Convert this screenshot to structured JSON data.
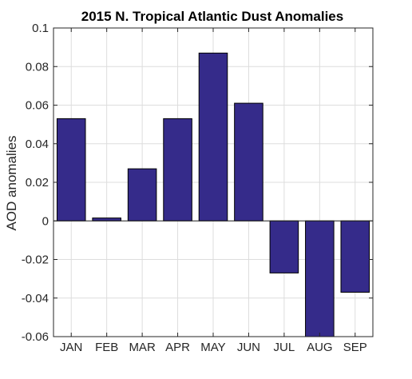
{
  "chart_data": {
    "type": "bar",
    "title": "2015 N. Tropical Atlantic Dust Anomalies",
    "xlabel": "",
    "ylabel": "AOD anomalies",
    "categories": [
      "JAN",
      "FEB",
      "MAR",
      "APR",
      "MAY",
      "JUN",
      "JUL",
      "AUG",
      "SEP"
    ],
    "values": [
      0.053,
      0.0015,
      0.027,
      0.053,
      0.087,
      0.061,
      -0.027,
      -0.06,
      -0.037
    ],
    "ylim": [
      -0.06,
      0.1
    ],
    "yticks": [
      -0.06,
      -0.04,
      -0.02,
      0,
      0.02,
      0.04,
      0.06,
      0.08,
      0.1
    ],
    "ytick_labels": [
      "-0.06",
      "-0.04",
      "-0.02",
      "0",
      "0.02",
      "0.04",
      "0.06",
      "0.08",
      "0.1"
    ],
    "grid": true,
    "legend": false,
    "colors": {
      "bar": "#352b8a",
      "bar_edge": "#000000",
      "grid": "#dddddd",
      "axis": "#262626",
      "background": "#ffffff"
    }
  }
}
